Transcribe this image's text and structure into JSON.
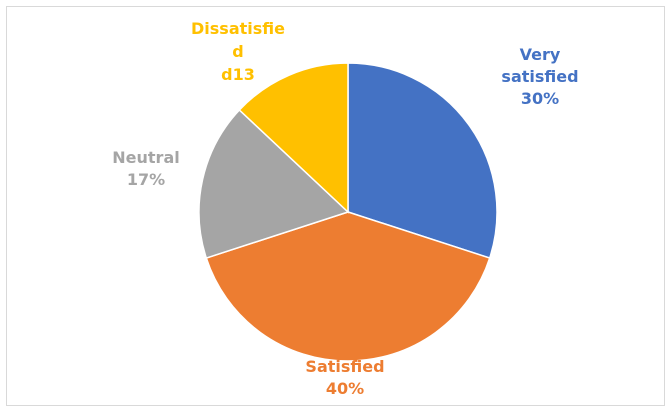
{
  "chart_data": {
    "type": "pie",
    "title": "",
    "legend": "none",
    "categories": [
      "Very satisfied",
      "Satisfied",
      "Neutral",
      "Dissatisfied"
    ],
    "values": [
      30,
      40,
      17,
      13
    ],
    "colors": [
      "#4472c4",
      "#ed7d31",
      "#a5a5a5",
      "#ffc000"
    ],
    "data_labels": [
      {
        "lines": [
          "Very",
          "satisfied",
          "30%"
        ]
      },
      {
        "lines": [
          "Satisfied",
          "40%"
        ]
      },
      {
        "lines": [
          "Neutral",
          "17%"
        ]
      },
      {
        "lines": [
          "Dissatisfie",
          "d",
          "d13"
        ]
      }
    ]
  }
}
